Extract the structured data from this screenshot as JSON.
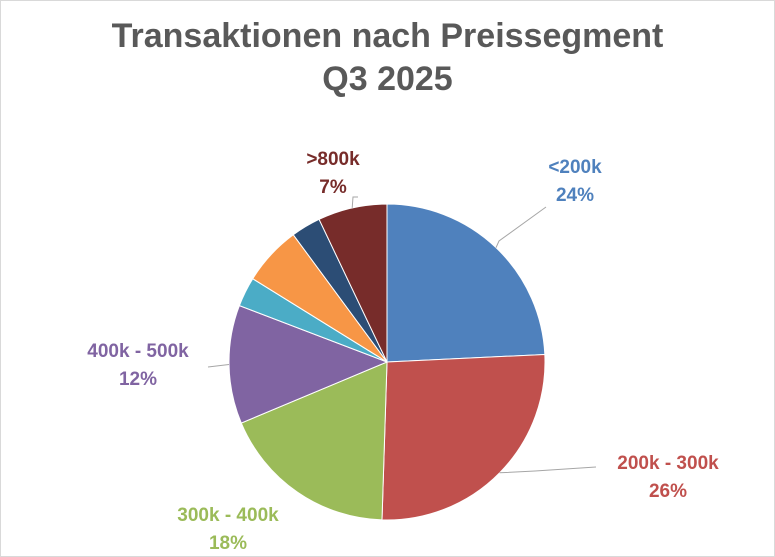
{
  "chart_data": {
    "type": "pie",
    "title": "Transaktionen nach Preissegment",
    "subtitle": "Q3 2025",
    "slices": [
      {
        "label": "<200k",
        "value": 24,
        "display": "24%",
        "color": "#4f81bd",
        "show_label": true
      },
      {
        "label": "200k - 300k",
        "value": 26,
        "display": "26%",
        "color": "#c0504d",
        "show_label": true
      },
      {
        "label": "300k - 400k",
        "value": 18,
        "display": "18%",
        "color": "#9bbb59",
        "show_label": true
      },
      {
        "label": "400k - 500k",
        "value": 12,
        "display": "12%",
        "color": "#8064a2",
        "show_label": true
      },
      {
        "label": "",
        "value": 3,
        "display": "",
        "color": "#4bacc6",
        "show_label": false
      },
      {
        "label": "",
        "value": 6,
        "display": "",
        "color": "#f79646",
        "show_label": false
      },
      {
        "label": "",
        "value": 3,
        "display": "",
        "color": "#2c4d75",
        "show_label": false
      },
      {
        "label": ">800k",
        "value": 7,
        "display": "7%",
        "color": "#772c2a",
        "show_label": true
      }
    ],
    "start_angle": "12 o'clock",
    "direction": "clockwise",
    "legend": "none",
    "data_labels": "outside with leader lines"
  }
}
